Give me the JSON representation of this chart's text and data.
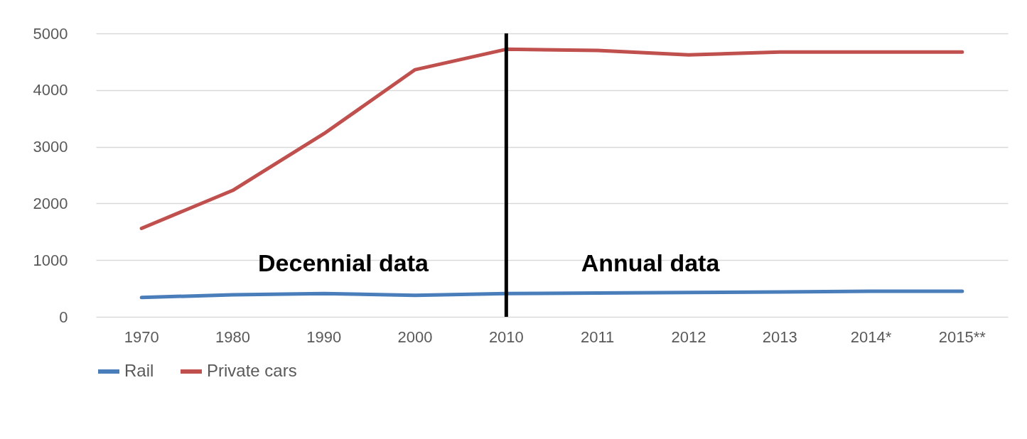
{
  "chart_data": {
    "type": "line",
    "categories": [
      "1970",
      "1980",
      "1990",
      "2000",
      "2010",
      "2011",
      "2012",
      "2013",
      "2014*",
      "2015**"
    ],
    "series": [
      {
        "name": "Rail",
        "color": "#4a7ebb",
        "values": [
          340,
          390,
          410,
          380,
          410,
          420,
          430,
          440,
          450,
          450
        ]
      },
      {
        "name": "Private cars",
        "color": "#c0504d",
        "values": [
          1560,
          2230,
          3230,
          4360,
          4720,
          4700,
          4620,
          4670,
          4670,
          4670
        ]
      }
    ],
    "ylim": [
      0,
      5000
    ],
    "yticks": [
      0,
      1000,
      2000,
      3000,
      4000,
      5000
    ],
    "grid": "y",
    "legend": "bottom",
    "ref_lines": [
      {
        "axis": "x",
        "value": "2010",
        "color": "#000000"
      }
    ],
    "annotations": [
      "Decennial data",
      "Annual data"
    ]
  }
}
